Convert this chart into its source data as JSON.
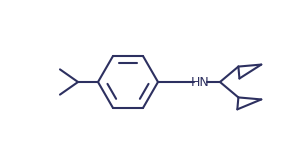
{
  "bg_color": "#ffffff",
  "line_color": "#2d3060",
  "line_width": 1.5,
  "hn_text": "HN",
  "font_size": 9,
  "fig_width": 3.03,
  "fig_height": 1.57,
  "dpi": 100
}
